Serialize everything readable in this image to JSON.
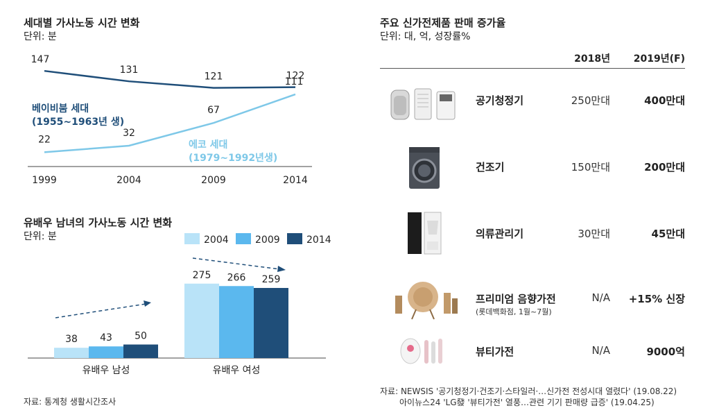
{
  "line_chart": {
    "title": "세대별 가사노동 시간 변화",
    "unit": "단위: 분",
    "chart_data": {
      "type": "line",
      "x": [
        "1999",
        "2004",
        "2009",
        "2014"
      ],
      "series": [
        {
          "name": "베이비붐 세대",
          "sublabel": "(1955~1963년 생)",
          "values": [
            147,
            131,
            121,
            122
          ],
          "color": "#1f4e79"
        },
        {
          "name": "에코 세대",
          "sublabel": "(1979~1992년생)",
          "values": [
            22,
            32,
            67,
            111
          ],
          "color": "#7ec8e8"
        }
      ],
      "ylim": [
        0,
        160
      ]
    }
  },
  "bar_chart": {
    "title": "유배우 남녀의 가사노동 시간 변화",
    "unit": "단위: 분",
    "chart_data": {
      "type": "bar",
      "categories": [
        "유배우 남성",
        "유배우 여성"
      ],
      "series": [
        {
          "name": "2004",
          "values": [
            38,
            275
          ],
          "color": "#b9e3f8"
        },
        {
          "name": "2009",
          "values": [
            43,
            266
          ],
          "color": "#5bb8ee"
        },
        {
          "name": "2014",
          "values": [
            50,
            259
          ],
          "color": "#1f4e79"
        }
      ],
      "ylim": [
        0,
        300
      ]
    },
    "source": "자료: 통계청 생활시간조사"
  },
  "sales_table": {
    "title": "주요 신가전제품 판매 증가율",
    "unit": "단위: 대, 억, 성장률%",
    "headers": [
      "2018년",
      "2019년(F)"
    ],
    "rows": [
      {
        "icon": "air-purifier-icon",
        "name": "공기청정기",
        "note": "",
        "y2018": "250만대",
        "y2019": "400만대"
      },
      {
        "icon": "dryer-icon",
        "name": "건조기",
        "note": "",
        "y2018": "150만대",
        "y2019": "200만대"
      },
      {
        "icon": "clothing-care-icon",
        "name": "의류관리기",
        "note": "",
        "y2018": "30만대",
        "y2019": "45만대"
      },
      {
        "icon": "speaker-icon",
        "name": "프리미엄 음향가전",
        "note": "(롯데백화점, 1월~7월)",
        "y2018": "N/A",
        "y2019": "+15% 신장"
      },
      {
        "icon": "beauty-device-icon",
        "name": "뷰티가전",
        "note": "",
        "y2018": "N/A",
        "y2019": "9000억"
      }
    ],
    "source_line1": "자료: NEWSIS '공기청정기·건조기·스타일러·…신가전 전성시대 열렸다' (19.08.22)",
    "source_line2": "아이뉴스24 'LG發 '뷰티가전' 열풍…관련 기기 판매량 급증' (19.04.25)"
  }
}
